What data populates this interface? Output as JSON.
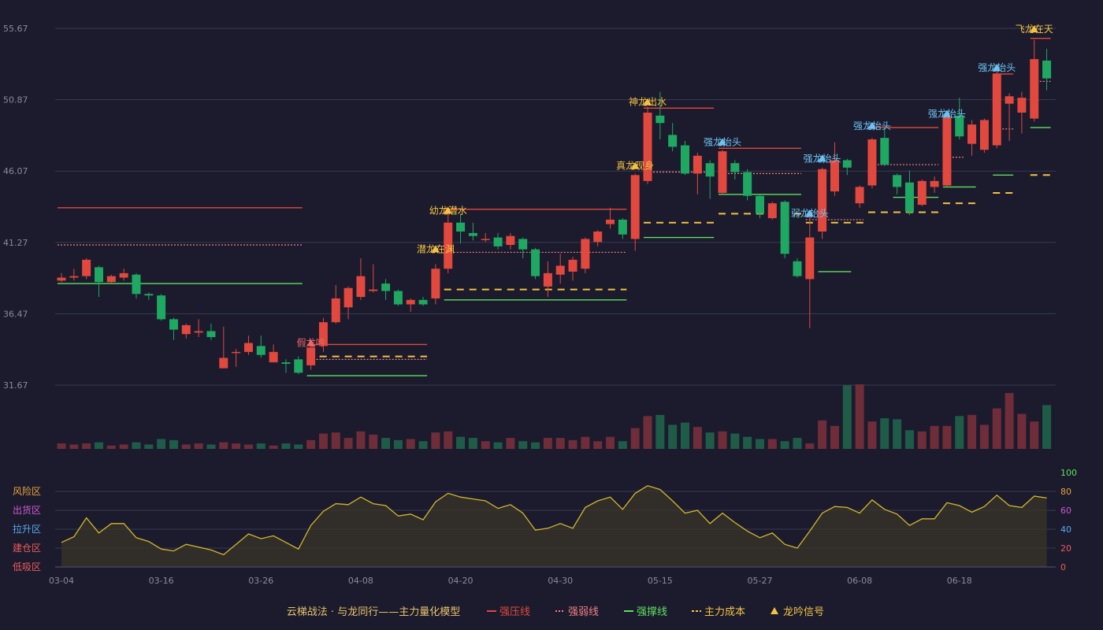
{
  "chart_data": {
    "type": "candlestick",
    "price_axis": {
      "ticks": [
        "55.67",
        "50.87",
        "46.07",
        "41.27",
        "36.47",
        "31.67"
      ],
      "range": [
        31.67,
        55.67
      ]
    },
    "osc_axis": {
      "ticks": [
        "100",
        "80",
        "60",
        "40",
        "20",
        "0"
      ],
      "range": [
        0,
        100
      ],
      "zones": [
        "风险区",
        "出货区",
        "拉升区",
        "建仓区",
        "低吸区"
      ]
    },
    "date_labels": [
      {
        "i": 0,
        "text": "03-04"
      },
      {
        "i": 8,
        "text": "03-16"
      },
      {
        "i": 16,
        "text": "03-26"
      },
      {
        "i": 24,
        "text": "04-08"
      },
      {
        "i": 32,
        "text": "04-20"
      },
      {
        "i": 40,
        "text": "04-30"
      },
      {
        "i": 48,
        "text": "05-15"
      },
      {
        "i": 56,
        "text": "05-27"
      },
      {
        "i": 64,
        "text": "06-08"
      },
      {
        "i": 72,
        "text": "06-18"
      }
    ],
    "candles": [
      [
        38.7,
        38.9,
        39.2,
        38.6
      ],
      [
        38.9,
        39.0,
        39.5,
        38.7
      ],
      [
        39.0,
        40.1,
        40.2,
        38.8
      ],
      [
        39.6,
        38.6,
        39.7,
        37.6
      ],
      [
        38.6,
        39.0,
        39.1,
        38.5
      ],
      [
        38.9,
        39.2,
        39.5,
        38.7
      ],
      [
        39.1,
        37.8,
        39.2,
        37.5
      ],
      [
        37.8,
        37.7,
        37.9,
        37.4
      ],
      [
        37.7,
        36.1,
        37.8,
        36.0
      ],
      [
        36.1,
        35.4,
        36.2,
        34.7
      ],
      [
        35.1,
        35.7,
        35.8,
        34.8
      ],
      [
        35.2,
        35.3,
        36.1,
        34.9
      ],
      [
        35.3,
        34.9,
        35.8,
        34.7
      ],
      [
        32.8,
        33.5,
        35.6,
        32.8
      ],
      [
        33.9,
        33.9,
        34.1,
        32.9
      ],
      [
        33.9,
        34.5,
        35.0,
        33.7
      ],
      [
        34.3,
        33.7,
        35.0,
        33.5
      ],
      [
        33.2,
        33.9,
        34.4,
        33.2
      ],
      [
        33.2,
        33.1,
        33.4,
        32.5
      ],
      [
        33.4,
        32.5,
        33.6,
        32.4
      ],
      [
        33.0,
        34.2,
        34.4,
        32.7
      ],
      [
        34.3,
        35.9,
        36.2,
        33.9
      ],
      [
        35.9,
        37.5,
        38.4,
        35.8
      ],
      [
        36.9,
        38.2,
        38.3,
        36.1
      ],
      [
        37.6,
        39.0,
        40.2,
        37.4
      ],
      [
        38.0,
        38.1,
        39.8,
        37.9
      ],
      [
        38.5,
        38.0,
        38.8,
        37.4
      ],
      [
        38.0,
        37.1,
        38.1,
        37.0
      ],
      [
        37.1,
        37.4,
        37.5,
        36.6
      ],
      [
        37.4,
        37.1,
        37.6,
        37.0
      ],
      [
        37.5,
        39.5,
        39.8,
        37.1
      ],
      [
        39.5,
        42.6,
        43.5,
        39.2
      ],
      [
        42.6,
        42.0,
        43.2,
        41.2
      ],
      [
        41.9,
        41.7,
        42.6,
        41.4
      ],
      [
        41.5,
        41.5,
        41.9,
        41.3
      ],
      [
        41.6,
        41.0,
        41.9,
        40.8
      ],
      [
        41.1,
        41.7,
        41.9,
        40.8
      ],
      [
        41.5,
        40.8,
        41.6,
        40.2
      ],
      [
        40.8,
        39.0,
        40.9,
        38.8
      ],
      [
        38.3,
        39.2,
        40.0,
        37.6
      ],
      [
        39.1,
        39.7,
        40.5,
        38.5
      ],
      [
        39.3,
        40.1,
        40.3,
        38.7
      ],
      [
        39.5,
        41.5,
        41.6,
        39.2
      ],
      [
        41.3,
        42.0,
        42.1,
        41.0
      ],
      [
        42.5,
        42.8,
        43.6,
        42.2
      ],
      [
        42.8,
        41.8,
        42.9,
        41.5
      ],
      [
        41.5,
        45.8,
        45.9,
        40.7
      ],
      [
        45.4,
        50.0,
        50.4,
        45.2
      ],
      [
        49.8,
        49.3,
        51.4,
        48.2
      ],
      [
        48.5,
        47.7,
        49.3,
        47.4
      ],
      [
        47.8,
        45.9,
        48.1,
        45.8
      ],
      [
        45.9,
        47.1,
        47.3,
        44.5
      ],
      [
        46.6,
        45.7,
        46.8,
        44.2
      ],
      [
        44.6,
        47.4,
        47.5,
        44.5
      ],
      [
        46.6,
        46.0,
        46.8,
        45.5
      ],
      [
        46.0,
        44.4,
        46.2,
        44.1
      ],
      [
        44.4,
        43.2,
        44.5,
        42.9
      ],
      [
        42.9,
        43.9,
        44.0,
        42.8
      ],
      [
        44.0,
        40.5,
        44.1,
        40.2
      ],
      [
        40.0,
        39.0,
        40.2,
        38.9
      ],
      [
        38.8,
        41.6,
        43.0,
        35.5
      ],
      [
        42.0,
        46.2,
        46.3,
        41.5
      ],
      [
        44.7,
        46.8,
        48.0,
        44.4
      ],
      [
        46.8,
        46.3,
        46.9,
        45.8
      ],
      [
        43.9,
        45.0,
        45.1,
        43.6
      ],
      [
        45.1,
        48.2,
        48.3,
        44.9
      ],
      [
        48.3,
        46.5,
        49.0,
        46.4
      ],
      [
        45.8,
        45.0,
        45.9,
        44.5
      ],
      [
        45.3,
        43.3,
        46.1,
        43.1
      ],
      [
        43.8,
        45.4,
        45.5,
        43.7
      ],
      [
        45.0,
        45.4,
        45.7,
        44.6
      ],
      [
        45.1,
        49.7,
        49.8,
        45.0
      ],
      [
        49.8,
        48.4,
        51.0,
        48.2
      ],
      [
        47.9,
        49.2,
        49.5,
        47.1
      ],
      [
        47.5,
        49.5,
        49.6,
        47.3
      ],
      [
        47.8,
        52.6,
        52.8,
        47.6
      ],
      [
        50.6,
        51.1,
        51.3,
        48.1
      ],
      [
        50.0,
        51.0,
        51.4,
        48.6
      ],
      [
        49.6,
        53.6,
        54.9,
        49.4
      ],
      [
        53.5,
        52.3,
        54.3,
        51.5
      ]
    ],
    "volume": [
      5,
      4,
      5,
      6,
      3,
      4,
      6,
      4,
      9,
      8,
      4,
      5,
      4,
      6,
      5,
      4,
      5,
      3,
      5,
      4,
      8,
      14,
      15,
      10,
      16,
      13,
      10,
      8,
      9,
      7,
      15,
      16,
      11,
      10,
      7,
      6,
      10,
      7,
      6,
      10,
      10,
      8,
      11,
      7,
      11,
      7,
      19,
      30,
      31,
      22,
      24,
      20,
      15,
      16,
      14,
      11,
      9,
      9,
      7,
      10,
      5,
      26,
      21,
      58,
      59,
      25,
      28,
      27,
      17,
      16,
      21,
      21,
      30,
      31,
      22,
      37,
      51,
      32,
      25,
      40
    ],
    "oscillator": [
      26,
      32,
      52,
      36,
      46,
      46,
      31,
      27,
      19,
      17,
      24,
      21,
      18,
      13,
      24,
      35,
      30,
      33,
      26,
      19,
      44,
      59,
      67,
      66,
      74,
      67,
      65,
      54,
      56,
      50,
      69,
      78,
      74,
      72,
      70,
      62,
      66,
      57,
      39,
      41,
      46,
      41,
      63,
      70,
      74,
      61,
      78,
      86,
      82,
      70,
      57,
      60,
      46,
      57,
      47,
      38,
      31,
      36,
      24,
      20,
      38,
      57,
      64,
      63,
      57,
      71,
      61,
      56,
      44,
      51,
      51,
      68,
      65,
      58,
      64,
      76,
      65,
      63,
      75,
      73
    ],
    "resistance_lines": [
      {
        "from": 0,
        "to": 19,
        "y": 43.6
      },
      {
        "from": 20,
        "to": 29,
        "y": 34.4
      },
      {
        "from": 31,
        "to": 45,
        "y": 43.5
      },
      {
        "from": 47,
        "to": 52,
        "y": 50.3
      },
      {
        "from": 53,
        "to": 59,
        "y": 47.6
      },
      {
        "from": 65,
        "to": 70,
        "y": 49.0
      },
      {
        "from": 75,
        "to": 76,
        "y": 52.6
      },
      {
        "from": 78,
        "to": 79,
        "y": 55.0
      }
    ],
    "weak_lines": [
      {
        "from": 0,
        "to": 19,
        "y": 41.1
      },
      {
        "from": 20,
        "to": 29,
        "y": 33.4
      },
      {
        "from": 31,
        "to": 45,
        "y": 40.6
      },
      {
        "from": 47,
        "to": 52,
        "y": 46.0
      },
      {
        "from": 53,
        "to": 59,
        "y": 45.9
      },
      {
        "from": 60,
        "to": 64,
        "y": 42.8
      },
      {
        "from": 65,
        "to": 70,
        "y": 46.5
      },
      {
        "from": 71,
        "to": 72,
        "y": 47.0
      },
      {
        "from": 75,
        "to": 76,
        "y": 48.9
      },
      {
        "from": 78,
        "to": 79,
        "y": 52.1
      }
    ],
    "support_lines": [
      {
        "from": 0,
        "to": 19,
        "y": 38.5
      },
      {
        "from": 20,
        "to": 29,
        "y": 32.3
      },
      {
        "from": 31,
        "to": 45,
        "y": 37.4
      },
      {
        "from": 47,
        "to": 52,
        "y": 41.6
      },
      {
        "from": 53,
        "to": 59,
        "y": 44.5
      },
      {
        "from": 61,
        "to": 63,
        "y": 39.3
      },
      {
        "from": 67,
        "to": 70,
        "y": 44.3
      },
      {
        "from": 71,
        "to": 73,
        "y": 45.0
      },
      {
        "from": 75,
        "to": 76,
        "y": 45.8
      },
      {
        "from": 78,
        "to": 79,
        "y": 49.0
      }
    ],
    "cost_lines": [
      {
        "from": 20,
        "to": 29,
        "y": 33.6
      },
      {
        "from": 31,
        "to": 45,
        "y": 38.1
      },
      {
        "from": 47,
        "to": 52,
        "y": 42.6
      },
      {
        "from": 53,
        "to": 59,
        "y": 43.2
      },
      {
        "from": 60,
        "to": 64,
        "y": 42.6
      },
      {
        "from": 65,
        "to": 70,
        "y": 43.3
      },
      {
        "from": 71,
        "to": 73,
        "y": 43.9
      },
      {
        "from": 75,
        "to": 76,
        "y": 44.6
      },
      {
        "from": 78,
        "to": 79,
        "y": 45.8
      }
    ],
    "signals": [
      {
        "i": 20,
        "y": 34.3,
        "text": "假龙吟",
        "color": "#f06767"
      },
      {
        "i": 30,
        "y": 40.6,
        "text": "潜龙在渊",
        "color": "#f5c242"
      },
      {
        "i": 31,
        "y": 43.2,
        "text": "幼龙潜水",
        "color": "#f5c242"
      },
      {
        "i": 46,
        "y": 46.2,
        "text": "真龙现身",
        "color": "#f5c242"
      },
      {
        "i": 47,
        "y": 50.5,
        "text": "神龙出水",
        "color": "#f5c242"
      },
      {
        "i": 53,
        "y": 47.8,
        "text": "强龙抬头",
        "color": "#6fc3f2"
      },
      {
        "i": 60,
        "y": 43.0,
        "text": "弱龙抬头",
        "color": "#6fc3f2"
      },
      {
        "i": 61,
        "y": 46.7,
        "text": "强龙抬头",
        "color": "#6fc3f2"
      },
      {
        "i": 65,
        "y": 48.9,
        "text": "强龙抬头",
        "color": "#6fc3f2"
      },
      {
        "i": 71,
        "y": 49.7,
        "text": "强龙抬头",
        "color": "#6fc3f2"
      },
      {
        "i": 75,
        "y": 52.8,
        "text": "强龙抬头",
        "color": "#6fc3f2"
      },
      {
        "i": 78,
        "y": 55.4,
        "text": "飞龙在天",
        "color": "#f5c242"
      }
    ],
    "colors": {
      "up": "#e2483d",
      "down": "#1fa862",
      "resistance": "#e2483d",
      "weak": "#f08080",
      "support": "#5ee05e",
      "cost": "#f5c242",
      "osc_line": "#d4b62a",
      "grid": "#3a3a52",
      "axis_text": "#8a8a9c"
    }
  },
  "legend": {
    "model_title": "云梯战法 · 与龙同行——主力量化模型",
    "resistance": "强压线",
    "weak": "强弱线",
    "support": "强撑线",
    "cost": "主力成本",
    "signal": "龙吟信号"
  }
}
